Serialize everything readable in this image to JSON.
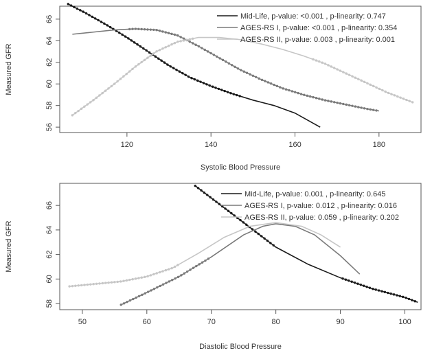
{
  "chart_data": [
    {
      "type": "line",
      "xlabel": "Systolic Blood Pressure",
      "ylabel": "Measured GFR",
      "xlim": [
        104,
        190
      ],
      "ylim": [
        55.5,
        67.2
      ],
      "xticks": [
        120,
        140,
        160,
        180
      ],
      "yticks": [
        56,
        58,
        60,
        62,
        64,
        66
      ],
      "grid": false,
      "legend_position": "top-right",
      "series": [
        {
          "name": "Mid-Life, p-value: <0.001 , p-linearity: 0.747",
          "color": "#1a1a1a",
          "dash_end": 147,
          "x": [
            106,
            110,
            115,
            120,
            125,
            130,
            135,
            140,
            145,
            150,
            155,
            160,
            166
          ],
          "y": [
            67.4,
            66.6,
            65.5,
            64.3,
            63.0,
            61.7,
            60.6,
            59.8,
            59.1,
            58.5,
            58.0,
            57.3,
            56.0
          ]
        },
        {
          "name": "AGES-RS I, p-value: <0.001 , p-linearity: 0.354",
          "color": "#7a7a7a",
          "dash_start": 120,
          "x": [
            107,
            112,
            117,
            122,
            127,
            132,
            137,
            142,
            147,
            152,
            157,
            162,
            167,
            172,
            177,
            180
          ],
          "y": [
            64.6,
            64.8,
            65.0,
            65.1,
            65.0,
            64.5,
            63.5,
            62.4,
            61.3,
            60.4,
            59.6,
            59.0,
            58.5,
            58.1,
            57.7,
            57.5
          ]
        },
        {
          "name": "AGES-RS II, p-value: 0.003 , p-linearity: 0.001",
          "color": "#c6c6c6",
          "dash_end": 136,
          "dash_start": 164,
          "x": [
            107,
            112,
            117,
            122,
            127,
            132,
            137,
            142,
            147,
            152,
            157,
            162,
            167,
            172,
            177,
            182,
            188
          ],
          "y": [
            57.1,
            58.5,
            60.0,
            61.6,
            63.0,
            63.9,
            64.3,
            64.3,
            64.1,
            63.7,
            63.2,
            62.6,
            61.9,
            61.0,
            60.1,
            59.2,
            58.3
          ]
        }
      ]
    },
    {
      "type": "line",
      "xlabel": "Diastolic Blood Pressure",
      "ylabel": "Measured GFR",
      "xlim": [
        46.5,
        102.5
      ],
      "ylim": [
        57.5,
        67.8
      ],
      "xticks": [
        50,
        60,
        70,
        80,
        90,
        100
      ],
      "yticks": [
        58,
        60,
        62,
        64,
        66
      ],
      "grid": false,
      "legend_position": "top-right",
      "series": [
        {
          "name": "Mid-Life, p-value: 0.001 , p-linearity: 0.645",
          "color": "#1a1a1a",
          "dash_end": 80,
          "dash_start": 90,
          "x": [
            67.5,
            70,
            75,
            80,
            85,
            90,
            95,
            100,
            102
          ],
          "y": [
            67.6,
            66.6,
            64.6,
            62.6,
            61.2,
            60.1,
            59.2,
            58.5,
            58.1
          ]
        },
        {
          "name": "AGES-RS I, p-value: 0.012 , p-linearity: 0.016",
          "color": "#7a7a7a",
          "dash_end": 70,
          "x": [
            56,
            60,
            65,
            70,
            75,
            78,
            80,
            83,
            86,
            90,
            93
          ],
          "y": [
            57.9,
            58.9,
            60.2,
            61.8,
            63.6,
            64.3,
            64.5,
            64.3,
            63.6,
            61.9,
            60.4
          ]
        },
        {
          "name": "AGES-RS II, p-value: 0.059 , p-linearity: 0.202",
          "color": "#c6c6c6",
          "dash_end": 65,
          "x": [
            48,
            52,
            56,
            60,
            64,
            68,
            72,
            76,
            80,
            84,
            87,
            90
          ],
          "y": [
            59.4,
            59.6,
            59.8,
            60.2,
            60.9,
            62.1,
            63.4,
            64.3,
            64.6,
            64.3,
            63.6,
            62.6
          ]
        }
      ]
    }
  ]
}
